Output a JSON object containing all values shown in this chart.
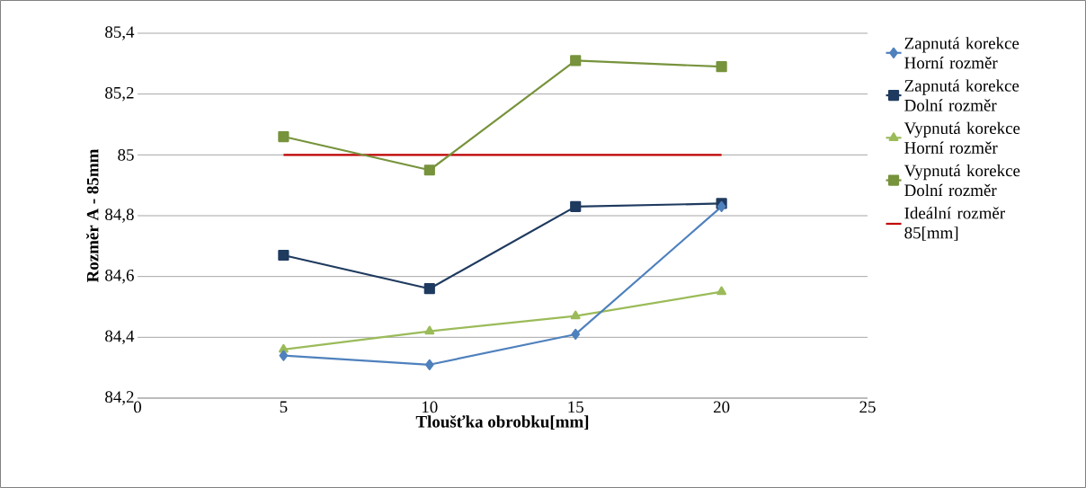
{
  "chart_data": {
    "type": "line",
    "xlabel": "Tloušťka obrobku[mm]",
    "ylabel": "Rozměr A - 85mm",
    "x": [
      5,
      10,
      15,
      20
    ],
    "series": [
      {
        "name": "Zapnutá korekce Horní rozměr",
        "color": "#4f81bd",
        "marker": "diamond",
        "values": [
          84.34,
          84.31,
          84.41,
          84.83
        ]
      },
      {
        "name": "Zapnutá korekce Dolní rozměr",
        "color": "#1f3a5f",
        "marker": "square",
        "values": [
          84.67,
          84.56,
          84.83,
          84.84
        ]
      },
      {
        "name": "Vypnutá korekce Horní rozměr",
        "color": "#9bbb59",
        "marker": "triangle",
        "values": [
          84.36,
          84.42,
          84.47,
          84.55
        ]
      },
      {
        "name": "Vypnutá korekce Dolní rozměr",
        "color": "#77933c",
        "marker": "square",
        "values": [
          85.06,
          84.95,
          85.31,
          85.29
        ]
      },
      {
        "name": "Ideální rozměr 85[mm]",
        "color": "#c00000",
        "marker": "none",
        "values": [
          85,
          85,
          85,
          85
        ]
      }
    ],
    "xlim": [
      0,
      25
    ],
    "xticks": [
      0,
      5,
      10,
      15,
      20,
      25
    ],
    "ylim": [
      84.2,
      85.4
    ],
    "yticks": [
      {
        "value": 84.2,
        "label": "84,2"
      },
      {
        "value": 84.4,
        "label": "84,4"
      },
      {
        "value": 84.6,
        "label": "84,6"
      },
      {
        "value": 84.8,
        "label": "84,8"
      },
      {
        "value": 85,
        "label": "85"
      },
      {
        "value": 85.2,
        "label": "85,2"
      },
      {
        "value": 85.4,
        "label": "85,4"
      }
    ],
    "grid": "y",
    "legend": "right"
  }
}
